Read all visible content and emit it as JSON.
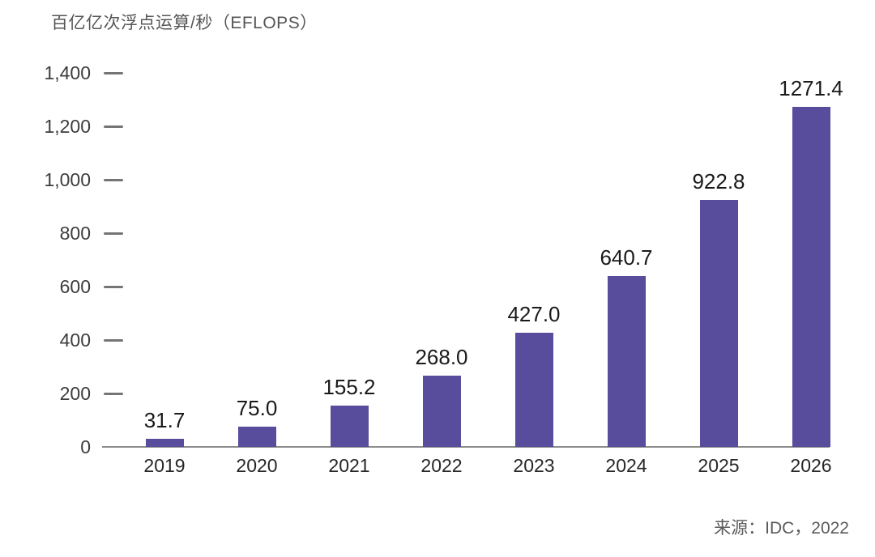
{
  "chart_data": {
    "type": "bar",
    "title": "百亿亿次浮点运算/秒（EFLOPS）",
    "categories": [
      "2019",
      "2020",
      "2021",
      "2022",
      "2023",
      "2024",
      "2025",
      "2026"
    ],
    "values": [
      31.7,
      75.0,
      155.2,
      268.0,
      427.0,
      640.7,
      922.8,
      1271.4
    ],
    "value_labels": [
      "31.7",
      "75.0",
      "155.2",
      "268.0",
      "427.0",
      "640.7",
      "922.8",
      "1271.4"
    ],
    "xlabel": "",
    "ylabel": "",
    "ylim": [
      0,
      1400
    ],
    "yticks": {
      "values": [
        0,
        200,
        400,
        600,
        800,
        1000,
        1200,
        1400
      ],
      "labels": [
        "0",
        "200",
        "400",
        "600",
        "800",
        "1,000",
        "1,200",
        "1,400"
      ]
    },
    "grid": "off",
    "legend": "none",
    "source": "来源：IDC，2022"
  },
  "colors": {
    "bar": "#584C9C",
    "axis_line": "#8C8C8C",
    "tick": "#757575",
    "title_text": "#555555",
    "value_text": "#1A1A1A",
    "axis_text": "#3D3D3D",
    "category_text": "#262626",
    "source_text": "#5A5A5A",
    "background": "#FFFFFF"
  }
}
